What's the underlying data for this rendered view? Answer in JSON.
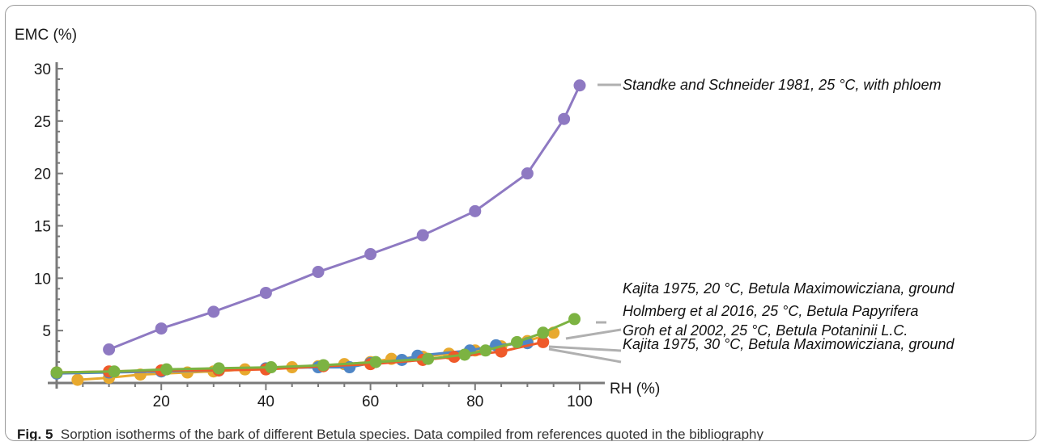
{
  "caption": {
    "label": "Fig. 5",
    "text": "Sorption isotherms of the bark of different Betula species. Data compiled from references quoted in the bibliography"
  },
  "chart_data": {
    "type": "line",
    "xlabel": "RH (%)",
    "ylabel": "EMC (%)",
    "xlim": [
      0,
      100
    ],
    "ylim": [
      0,
      30
    ],
    "x_ticks": [
      20,
      40,
      60,
      80,
      100
    ],
    "y_ticks": [
      5,
      10,
      15,
      20,
      25,
      30
    ],
    "grid": false,
    "series": [
      {
        "name": "Standke and Schneider 1981, 25 °C, with phloem",
        "color": "#8e79c2",
        "x": [
          10,
          20,
          30,
          40,
          50,
          60,
          70,
          80,
          90,
          97,
          100
        ],
        "y": [
          3.2,
          5.2,
          6.8,
          8.6,
          10.6,
          12.3,
          14.1,
          16.4,
          20.0,
          25.2,
          28.4
        ]
      },
      {
        "name": "Kajita 1975, 20 °C, Betula Maximowicziana, ground",
        "color": "#7cb342",
        "x": [
          0,
          11,
          21,
          31,
          41,
          51,
          61,
          71,
          78,
          82,
          88,
          93,
          99
        ],
        "y": [
          1.0,
          1.1,
          1.3,
          1.4,
          1.5,
          1.7,
          2.0,
          2.3,
          2.7,
          3.1,
          3.9,
          4.8,
          6.1
        ]
      },
      {
        "name": "Holmberg et al 2016, 25 °C, Betula Papyrifera",
        "color": "#e8a92e",
        "x": [
          4,
          10,
          16,
          25,
          30,
          36,
          45,
          50,
          55,
          60,
          64,
          70,
          75,
          80,
          85,
          90,
          95
        ],
        "y": [
          0.3,
          0.5,
          0.8,
          1.0,
          1.1,
          1.3,
          1.5,
          1.6,
          1.8,
          2.0,
          2.3,
          2.5,
          2.8,
          3.1,
          3.5,
          4.0,
          4.8
        ]
      },
      {
        "name": "Groh et al 2002, 25 °C, Betula Potaninii L.C.",
        "color": "#4f86c6",
        "x": [
          0,
          10,
          20,
          31,
          40,
          50,
          56,
          60,
          66,
          69,
          79,
          84,
          90
        ],
        "y": [
          0.9,
          1.0,
          1.1,
          1.2,
          1.4,
          1.5,
          1.5,
          1.9,
          2.2,
          2.6,
          3.1,
          3.6,
          3.8
        ]
      },
      {
        "name": "Kajita 1975, 30 °C, Betula Maximowicziana, ground",
        "color": "#ef5a2a",
        "x": [
          0,
          10,
          20,
          31,
          40,
          51,
          60,
          70,
          76,
          85,
          93
        ],
        "y": [
          1.0,
          1.1,
          1.2,
          1.2,
          1.3,
          1.6,
          1.8,
          2.2,
          2.5,
          3.0,
          3.9
        ]
      }
    ]
  }
}
